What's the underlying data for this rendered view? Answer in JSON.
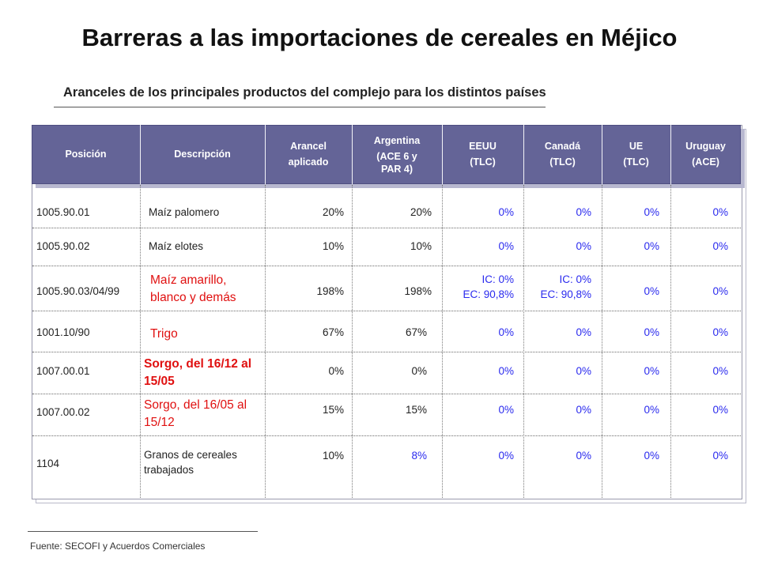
{
  "title": "Barreras a las importaciones de cereales en Méjico",
  "subtitle": "Aranceles de los principales productos del complejo para los distintos países",
  "footer": "Fuente: SECOFI y Acuerdos Comerciales",
  "headers": {
    "posicion": "Posición",
    "descripcion": "Descripción",
    "arancel": [
      "Arancel",
      "aplicado"
    ],
    "argentina": [
      "Argentina",
      "(ACE 6 y",
      "PAR 4)"
    ],
    "eeuu": [
      "EEUU",
      "(TLC)"
    ],
    "canada": [
      "Canadá",
      "(TLC)"
    ],
    "ue": [
      "UE",
      "(TLC)"
    ],
    "uruguay": [
      "Uruguay",
      "(ACE)"
    ]
  },
  "rows": [
    {
      "posicion": "1005.90.01",
      "descripcion": "Maíz palomero",
      "arancel": "20%",
      "argentina": "20%",
      "eeuu": "0%",
      "canada": "0%",
      "ue": "0%",
      "uruguay": "0%"
    },
    {
      "posicion": "1005.90.02",
      "descripcion": "Maíz elotes",
      "arancel": "10%",
      "argentina": "10%",
      "eeuu": "0%",
      "canada": "0%",
      "ue": "0%",
      "uruguay": "0%"
    },
    {
      "posicion": "1005.90.03/04/99",
      "descripcion": "Maíz amarillo, blanco y demás",
      "arancel": "198%",
      "argentina": "198%",
      "eeuu": [
        "IC: 0%",
        "EC: 90,8%"
      ],
      "canada": [
        "IC: 0%",
        "EC: 90,8%"
      ],
      "ue": "0%",
      "uruguay": "0%"
    },
    {
      "posicion": "1001.10/90",
      "descripcion": "Trigo",
      "arancel": "67%",
      "argentina": "67%",
      "eeuu": "0%",
      "canada": "0%",
      "ue": "0%",
      "uruguay": "0%"
    },
    {
      "posicion": "1007.00.01",
      "descripcion": "Sorgo, del 16/12 al 15/05",
      "arancel": "0%",
      "argentina": "0%",
      "eeuu": "0%",
      "canada": "0%",
      "ue": "0%",
      "uruguay": "0%"
    },
    {
      "posicion": "1007.00.02",
      "descripcion": "Sorgo, del 16/05 al 15/12",
      "arancel": "15%",
      "argentina": "15%",
      "eeuu": "0%",
      "canada": "0%",
      "ue": "0%",
      "uruguay": "0%"
    },
    {
      "posicion": "1104",
      "descripcion": "Granos de cereales trabajados",
      "arancel": "10%",
      "argentina": "8%",
      "eeuu": "0%",
      "canada": "0%",
      "ue": "0%",
      "uruguay": "0%"
    }
  ],
  "colors": {
    "header_bg": "#646497",
    "highlight_red": "#e01010",
    "zero_blue": "#2a2aee"
  }
}
